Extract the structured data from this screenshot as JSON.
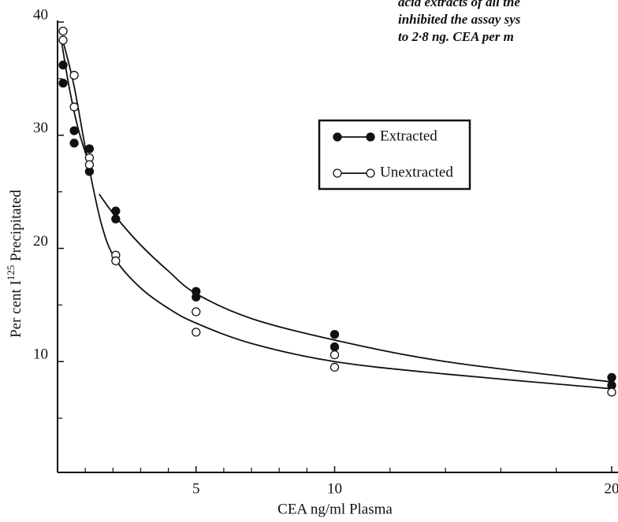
{
  "chart_data": {
    "type": "scatter",
    "annotation": [
      "acid extracts of all the",
      "inhibited the assay sys",
      "to 2·8 ng. CEA per m"
    ],
    "xlabel": "CEA ng/ml Plasma",
    "ylabel": [
      "Per cent I",
      "125",
      " Precipitated"
    ],
    "xlim": [
      0,
      20
    ],
    "ylim": [
      0,
      40
    ],
    "xticks": [
      5,
      10,
      20
    ],
    "xminor": [
      1,
      2,
      3,
      4,
      6,
      7,
      8,
      9,
      12,
      14,
      16,
      18
    ],
    "yticks": [
      10,
      20,
      30,
      40
    ],
    "yminor": [
      5,
      15,
      25,
      35
    ],
    "legend": "upper-right",
    "series": [
      {
        "name": "Extracted",
        "color": "#111",
        "filled": true,
        "x": [
          0.2,
          0.2,
          0.6,
          0.6,
          1.15,
          1.15,
          2.1,
          2.1,
          5,
          5,
          10,
          10,
          20,
          20
        ],
        "values": [
          36.2,
          34.6,
          30.4,
          29.3,
          28.8,
          26.8,
          23.3,
          22.6,
          16.2,
          15.7,
          12.4,
          11.3,
          8.6,
          7.9
        ],
        "fit": [
          {
            "x": [
              0.15,
              0.4,
              0.7,
              1.0,
              1.25
            ],
            "y": [
              38.2,
              34.5,
              31.0,
              28.5,
              27.0
            ]
          },
          {
            "x": [
              1.5,
              2.1,
              3,
              4,
              5,
              7,
              10,
              14,
              20
            ],
            "y": [
              24.8,
              22.8,
              20.3,
              18.0,
              16.0,
              13.8,
              11.9,
              10.0,
              8.2
            ]
          }
        ]
      },
      {
        "name": "Unextracted",
        "color": "#111",
        "filled": false,
        "x": [
          0.2,
          0.2,
          0.6,
          0.6,
          1.15,
          1.15,
          2.1,
          2.1,
          5,
          5,
          10,
          10,
          20
        ],
        "values": [
          39.2,
          38.4,
          35.3,
          32.5,
          28.0,
          27.4,
          19.4,
          18.9,
          14.4,
          12.6,
          10.6,
          9.5,
          7.3
        ],
        "fit": [
          {
            "x": [
              0.2,
              0.6,
              1.1,
              1.6,
              2.1,
              3,
              4,
              5,
              7,
              10,
              14,
              20
            ],
            "y": [
              38.3,
              34.3,
              27.6,
              22.0,
              19.0,
              16.5,
              14.7,
              13.4,
              11.6,
              10.0,
              8.9,
              7.6
            ]
          }
        ]
      }
    ]
  }
}
